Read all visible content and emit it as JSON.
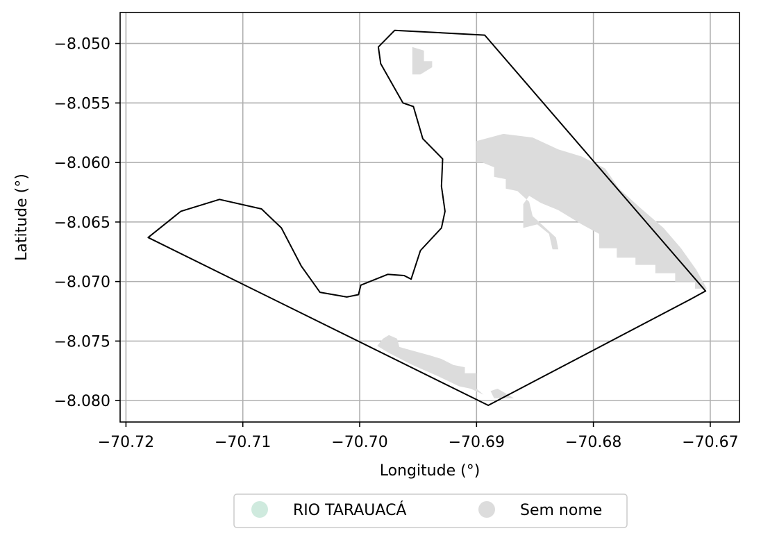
{
  "chart_data": {
    "type": "map",
    "xlabel": "Longitude (°)",
    "ylabel": "Latitude (°)",
    "xlim": [
      -70.7205,
      -70.6675
    ],
    "ylim": [
      -8.0818,
      -8.0474
    ],
    "grid": true,
    "x_ticks": [
      {
        "value": -70.72,
        "label": "−70.72"
      },
      {
        "value": -70.71,
        "label": "−70.71"
      },
      {
        "value": -70.7,
        "label": "−70.70"
      },
      {
        "value": -70.69,
        "label": "−70.69"
      },
      {
        "value": -70.68,
        "label": "−70.68"
      },
      {
        "value": -70.67,
        "label": "−70.67"
      }
    ],
    "y_ticks": [
      {
        "value": -8.05,
        "label": "−8.050"
      },
      {
        "value": -8.055,
        "label": "−8.055"
      },
      {
        "value": -8.06,
        "label": "−8.060"
      },
      {
        "value": -8.065,
        "label": "−8.065"
      },
      {
        "value": -8.07,
        "label": "−8.070"
      },
      {
        "value": -8.075,
        "label": "−8.075"
      },
      {
        "value": -8.08,
        "label": "−8.080"
      }
    ],
    "legend_position": "below",
    "legend": [
      {
        "label": "RIO TARAUACÁ",
        "color": "#cfeade"
      },
      {
        "label": "Sem nome",
        "color": "#dcdcdc"
      }
    ],
    "boundary": {
      "stroke": "#000000",
      "points": [
        [
          -70.697,
          -8.0489
        ],
        [
          -70.6893,
          -8.0493
        ],
        [
          -70.6704,
          -8.0708
        ],
        [
          -70.6717,
          -8.0715
        ],
        [
          -70.689,
          -8.0804
        ],
        [
          -70.7181,
          -8.0663
        ],
        [
          -70.7153,
          -8.0641
        ],
        [
          -70.712,
          -8.0631
        ],
        [
          -70.7084,
          -8.0639
        ],
        [
          -70.7067,
          -8.0655
        ],
        [
          -70.705,
          -8.0687
        ],
        [
          -70.7034,
          -8.0709
        ],
        [
          -70.7011,
          -8.0713
        ],
        [
          -70.7001,
          -8.0711
        ],
        [
          -70.6999,
          -8.0703
        ],
        [
          -70.6976,
          -8.0694
        ],
        [
          -70.6962,
          -8.0695
        ],
        [
          -70.6956,
          -8.0698
        ],
        [
          -70.6948,
          -8.0674
        ],
        [
          -70.693,
          -8.0655
        ],
        [
          -70.6927,
          -8.0641
        ],
        [
          -70.693,
          -8.062
        ],
        [
          -70.6929,
          -8.0597
        ],
        [
          -70.6946,
          -8.058
        ],
        [
          -70.6954,
          -8.0553
        ],
        [
          -70.6963,
          -8.055
        ],
        [
          -70.6982,
          -8.0517
        ],
        [
          -70.6984,
          -8.0503
        ]
      ]
    },
    "features": [
      {
        "name": "RIO TARAUACÁ",
        "color": "#cfeade",
        "polygons": [
          [
            [
              -70.6783,
              -8.0625
            ],
            [
              -70.6775,
              -8.0629
            ],
            [
              -70.674,
              -8.0665
            ],
            [
              -70.6716,
              -8.069
            ],
            [
              -70.6708,
              -8.0703
            ],
            [
              -70.6703,
              -8.0706
            ],
            [
              -70.671,
              -8.0703
            ],
            [
              -70.6735,
              -8.0676
            ],
            [
              -70.6765,
              -8.0642
            ],
            [
              -70.678,
              -8.0627
            ]
          ]
        ]
      },
      {
        "name": "Sem nome",
        "color": "#dcdcdc",
        "polygons": [
          [
            [
              -70.6955,
              -8.0503
            ],
            [
              -70.6945,
              -8.0506
            ],
            [
              -70.6945,
              -8.0515
            ],
            [
              -70.6938,
              -8.0515
            ],
            [
              -70.6938,
              -8.052
            ],
            [
              -70.6948,
              -8.0526
            ],
            [
              -70.6955,
              -8.0526
            ]
          ],
          [
            [
              -70.69,
              -8.0582
            ],
            [
              -70.6877,
              -8.0576
            ],
            [
              -70.6852,
              -8.0579
            ],
            [
              -70.683,
              -8.0589
            ],
            [
              -70.681,
              -8.0595
            ],
            [
              -70.679,
              -8.0605
            ],
            [
              -70.6778,
              -8.0622
            ],
            [
              -70.676,
              -8.0638
            ],
            [
              -70.674,
              -8.0655
            ],
            [
              -70.6725,
              -8.0672
            ],
            [
              -70.6712,
              -8.069
            ],
            [
              -70.6703,
              -8.0706
            ],
            [
              -70.6713,
              -8.0706
            ],
            [
              -70.6713,
              -8.07
            ],
            [
              -70.673,
              -8.07
            ],
            [
              -70.673,
              -8.0693
            ],
            [
              -70.6747,
              -8.0693
            ],
            [
              -70.6747,
              -8.0686
            ],
            [
              -70.6764,
              -8.0686
            ],
            [
              -70.6764,
              -8.068
            ],
            [
              -70.678,
              -8.068
            ],
            [
              -70.678,
              -8.0672
            ],
            [
              -70.6795,
              -8.0672
            ],
            [
              -70.6795,
              -8.066
            ],
            [
              -70.681,
              -8.0652
            ],
            [
              -70.683,
              -8.064
            ],
            [
              -70.6845,
              -8.0634
            ],
            [
              -70.6855,
              -8.0628
            ],
            [
              -70.686,
              -8.0635
            ],
            [
              -70.686,
              -8.0655
            ],
            [
              -70.6848,
              -8.0652
            ],
            [
              -70.6838,
              -8.066
            ],
            [
              -70.6835,
              -8.0673
            ],
            [
              -70.683,
              -8.0673
            ],
            [
              -70.6832,
              -8.0663
            ],
            [
              -70.6852,
              -8.0645
            ],
            [
              -70.6855,
              -8.0633
            ],
            [
              -70.6865,
              -8.0624
            ],
            [
              -70.6875,
              -8.0622
            ],
            [
              -70.6875,
              -8.0614
            ],
            [
              -70.6885,
              -8.0612
            ],
            [
              -70.6885,
              -8.0604
            ],
            [
              -70.6895,
              -8.06
            ],
            [
              -70.69,
              -8.06
            ]
          ],
          [
            [
              -70.6975,
              -8.0745
            ],
            [
              -70.6968,
              -8.0748
            ],
            [
              -70.6966,
              -8.0755
            ],
            [
              -70.6955,
              -8.0758
            ],
            [
              -70.694,
              -8.0762
            ],
            [
              -70.693,
              -8.0765
            ],
            [
              -70.692,
              -8.077
            ],
            [
              -70.691,
              -8.0772
            ],
            [
              -70.691,
              -8.0777
            ],
            [
              -70.69,
              -8.0777
            ],
            [
              -70.69,
              -8.079
            ],
            [
              -70.6894,
              -8.0795
            ],
            [
              -70.6905,
              -8.079
            ],
            [
              -70.6915,
              -8.0788
            ],
            [
              -70.6932,
              -8.078
            ],
            [
              -70.6955,
              -8.077
            ],
            [
              -70.6975,
              -8.076
            ],
            [
              -70.6985,
              -8.0754
            ],
            [
              -70.698,
              -8.0748
            ]
          ],
          [
            [
              -70.6888,
              -8.0792
            ],
            [
              -70.6882,
              -8.079
            ],
            [
              -70.6875,
              -8.0794
            ],
            [
              -70.6868,
              -8.0798
            ],
            [
              -70.6885,
              -8.0798
            ]
          ]
        ]
      }
    ]
  }
}
